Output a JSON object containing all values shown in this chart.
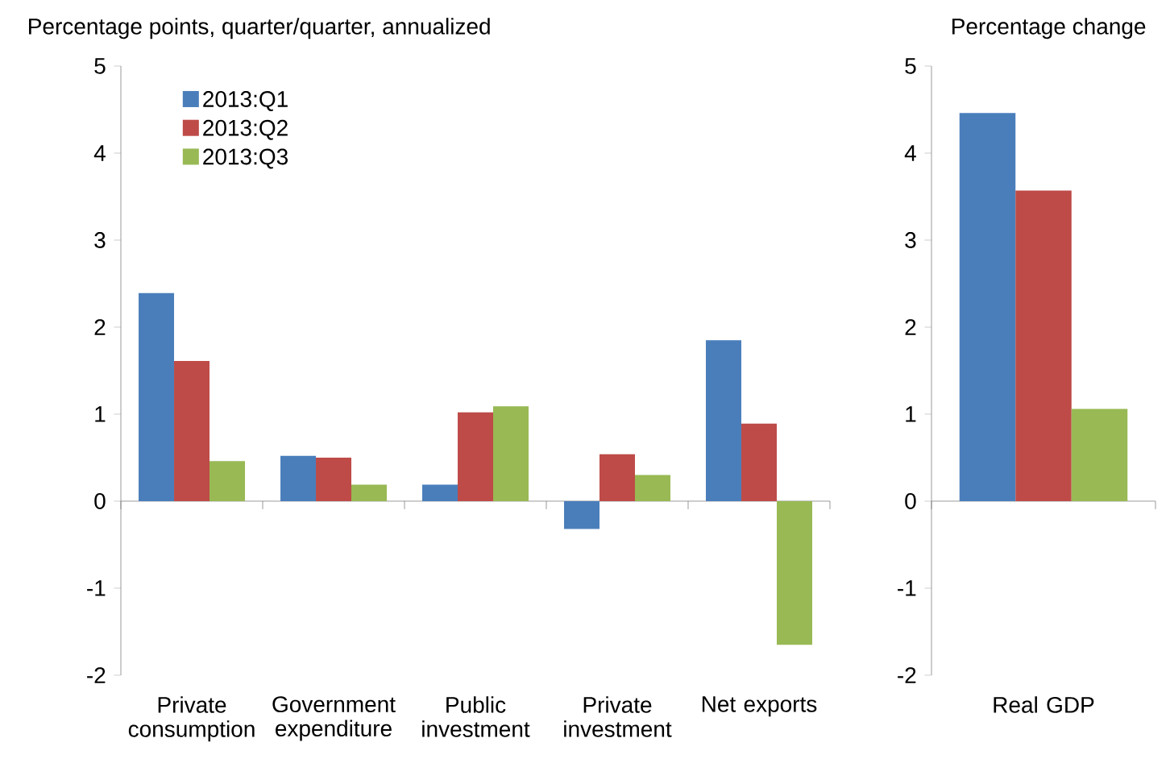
{
  "chart_data": [
    {
      "type": "bar",
      "title": "Percentage points, quarter/quarter, annualized",
      "categories": [
        "Private consumption",
        "Government expenditure",
        "Public investment",
        "Private investment",
        "Net exports"
      ],
      "series": [
        {
          "name": "2013:Q1",
          "color": "#4a7ebb",
          "values": [
            2.39,
            0.52,
            0.19,
            -0.32,
            1.85
          ]
        },
        {
          "name": "2013:Q2",
          "color": "#be4b48",
          "values": [
            1.61,
            0.5,
            1.02,
            0.54,
            0.89
          ]
        },
        {
          "name": "2013:Q3",
          "color": "#98b954",
          "values": [
            0.46,
            0.19,
            1.09,
            0.3,
            -1.65
          ]
        }
      ],
      "ylim": [
        -2,
        5
      ],
      "yticks": [
        -2,
        -1,
        0,
        1,
        2,
        3,
        4,
        5
      ],
      "legend": "top left"
    },
    {
      "type": "bar",
      "title": "Percentage change",
      "categories": [
        "Real GDP"
      ],
      "series": [
        {
          "color": "#4a7ebb",
          "values": [
            4.46
          ]
        },
        {
          "color": "#be4b48",
          "values": [
            3.57
          ]
        },
        {
          "color": "#98b954",
          "values": [
            1.06
          ]
        }
      ],
      "ylim": [
        -2,
        5
      ],
      "yticks": [
        -2,
        -1,
        0,
        1,
        2,
        3,
        4,
        5
      ]
    }
  ]
}
